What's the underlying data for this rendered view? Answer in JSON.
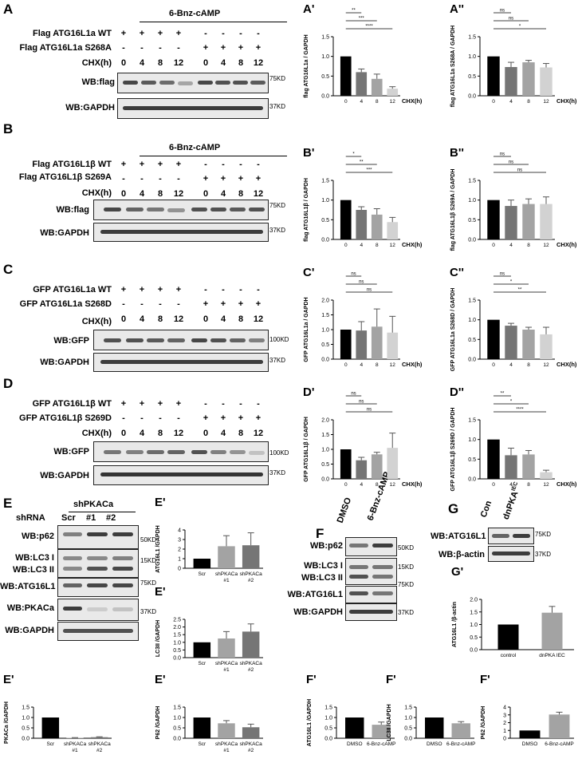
{
  "panels": {
    "A": {
      "label": "A",
      "header": "6-Bnz-cAMP",
      "row1": "Flag ATG16L1a WT",
      "row2": "Flag ATG16L1a S268A",
      "chx": "CHX(h)",
      "times": [
        "0",
        "4",
        "8",
        "12",
        "0",
        "4",
        "8",
        "12"
      ],
      "signs1": [
        "+",
        "+",
        "+",
        "+",
        "-",
        "-",
        "-",
        "-"
      ],
      "signs2": [
        "-",
        "-",
        "-",
        "-",
        "+",
        "+",
        "+",
        "+"
      ],
      "wb1": "WB:flag",
      "wb2": "WB:GAPDH",
      "mw1": "75KD",
      "mw2": "37KD"
    },
    "B": {
      "label": "B",
      "header": "6-Bnz-cAMP",
      "row1": "Flag ATG16L1β WT",
      "row2": "Flag ATG16L1β S269A",
      "chx": "CHX(h)",
      "times": [
        "0",
        "4",
        "8",
        "12",
        "0",
        "4",
        "8",
        "12"
      ],
      "signs1": [
        "+",
        "+",
        "+",
        "+",
        "-",
        "-",
        "-",
        "-"
      ],
      "signs2": [
        "-",
        "-",
        "-",
        "-",
        "+",
        "+",
        "+",
        "+"
      ],
      "wb1": "WB:flag",
      "wb2": "WB:GAPDH",
      "mw1": "75KD",
      "mw2": "37KD"
    },
    "C": {
      "label": "C",
      "row1": "GFP ATG16L1a WT",
      "row2": "GFP ATG16L1a S268D",
      "chx": "CHX(h)",
      "times": [
        "0",
        "4",
        "8",
        "12",
        "0",
        "4",
        "8",
        "12"
      ],
      "signs1": [
        "+",
        "+",
        "+",
        "+",
        "-",
        "-",
        "-",
        "-"
      ],
      "signs2": [
        "-",
        "-",
        "-",
        "-",
        "+",
        "+",
        "+",
        "+"
      ],
      "wb1": "WB:GFP",
      "wb2": "WB:GAPDH",
      "mw1": "100KD",
      "mw2": "37KD"
    },
    "D": {
      "label": "D",
      "row1": "GFP ATG16L1β WT",
      "row2": "GFP ATG16L1β S269D",
      "chx": "CHX(h)",
      "times": [
        "0",
        "4",
        "8",
        "12",
        "0",
        "4",
        "8",
        "12"
      ],
      "signs1": [
        "+",
        "+",
        "+",
        "+",
        "-",
        "-",
        "-",
        "-"
      ],
      "signs2": [
        "-",
        "-",
        "-",
        "-",
        "+",
        "+",
        "+",
        "+"
      ],
      "wb1": "WB:GFP",
      "wb2": "WB:GAPDH",
      "mw1": "100KD",
      "mw2": "37KD"
    },
    "E": {
      "label": "E",
      "shrna": "shRNA",
      "group": "shPKACa",
      "lanes": [
        "Scr",
        "#1",
        "#2"
      ],
      "wb": [
        "WB:p62",
        "WB:LC3 I",
        "WB:LC3 II",
        "WB:ATG16L1",
        "WB:PKACa",
        "WB:GAPDH"
      ],
      "mw": [
        "50KD",
        "15KD",
        "75KD",
        "37KD"
      ]
    },
    "F": {
      "label": "F",
      "lanes": [
        "DMSO",
        "6-Bnz-cAMP"
      ],
      "wb": [
        "WB:p62",
        "WB:LC3 I",
        "WB:LC3 II",
        "WB:ATG16L1",
        "WB:GAPDH"
      ],
      "mw": [
        "50KD",
        "15KD",
        "75KD",
        "37KD"
      ]
    },
    "G": {
      "label": "G",
      "lanes": [
        "Con",
        "dnPKA"
      ],
      "lane_sup": "IEC",
      "wb": [
        "WB:ATG16L1",
        "WB:β-actin"
      ],
      "mw": [
        "75KD",
        "37KD"
      ]
    }
  },
  "chart_data": [
    {
      "id": "A'",
      "type": "bar",
      "label": "A'",
      "ylabel": "flag ATG16L1a / GAPDH",
      "xlabel": "CHX(h)",
      "categories": [
        "0",
        "4",
        "8",
        "12"
      ],
      "values": [
        1.0,
        0.6,
        0.43,
        0.18
      ],
      "errors": [
        0,
        0.08,
        0.12,
        0.05
      ],
      "ylim": [
        0,
        1.5
      ],
      "yticks": [
        "0.0",
        "0.5",
        "1.0",
        "1.5"
      ],
      "sig": [
        {
          "label": "**",
          "to": 1
        },
        {
          "label": "***",
          "to": 2
        },
        {
          "label": "****",
          "to": 3
        }
      ],
      "colors": [
        "#000000",
        "#757575",
        "#a3a3a3",
        "#d2d2d2"
      ]
    },
    {
      "id": "A''",
      "type": "bar",
      "label": "A''",
      "ylabel": "flag ATG16L1a S268A / GAPDH",
      "xlabel": "CHX(h)",
      "categories": [
        "0",
        "4",
        "8",
        "12"
      ],
      "values": [
        1.0,
        0.73,
        0.85,
        0.72
      ],
      "errors": [
        0,
        0.12,
        0.05,
        0.1
      ],
      "ylim": [
        0,
        1.5
      ],
      "yticks": [
        "0.0",
        "0.5",
        "1.0",
        "1.5"
      ],
      "sig": [
        {
          "label": "ns",
          "to": 1
        },
        {
          "label": "ns",
          "to": 2
        },
        {
          "label": "*",
          "to": 3
        }
      ],
      "colors": [
        "#000000",
        "#757575",
        "#a3a3a3",
        "#d2d2d2"
      ]
    },
    {
      "id": "B'",
      "type": "bar",
      "label": "B'",
      "ylabel": "flag ATG16L1β / GAPDH",
      "xlabel": "CHX(h)",
      "categories": [
        "0",
        "4",
        "8",
        "12"
      ],
      "values": [
        1.0,
        0.75,
        0.63,
        0.44
      ],
      "errors": [
        0,
        0.08,
        0.15,
        0.12
      ],
      "ylim": [
        0,
        1.5
      ],
      "yticks": [
        "0.0",
        "0.5",
        "1.0",
        "1.5"
      ],
      "sig": [
        {
          "label": "*",
          "to": 1
        },
        {
          "label": "**",
          "to": 2
        },
        {
          "label": "***",
          "to": 3
        }
      ],
      "colors": [
        "#000000",
        "#757575",
        "#a3a3a3",
        "#d2d2d2"
      ]
    },
    {
      "id": "B''",
      "type": "bar",
      "label": "B''",
      "ylabel": "flag ATG16L1β S269A / GAPDH",
      "xlabel": "CHX(h)",
      "categories": [
        "0",
        "4",
        "8",
        "12"
      ],
      "values": [
        1.0,
        0.85,
        0.9,
        0.9
      ],
      "errors": [
        0,
        0.15,
        0.13,
        0.18
      ],
      "ylim": [
        0,
        1.5
      ],
      "yticks": [
        "0.0",
        "0.5",
        "1.0",
        "1.5"
      ],
      "sig": [
        {
          "label": "ns",
          "to": 1
        },
        {
          "label": "ns",
          "to": 2
        },
        {
          "label": "ns",
          "to": 3
        }
      ],
      "colors": [
        "#000000",
        "#757575",
        "#a3a3a3",
        "#d2d2d2"
      ]
    },
    {
      "id": "C'",
      "type": "bar",
      "label": "C'",
      "ylabel": "GFP ATG16L1a / GAPDH",
      "xlabel": "CHX(h)",
      "categories": [
        "0",
        "4",
        "8",
        "12"
      ],
      "values": [
        1.0,
        0.97,
        1.1,
        0.9
      ],
      "errors": [
        0,
        0.3,
        0.6,
        0.55
      ],
      "ylim": [
        0,
        2.0
      ],
      "yticks": [
        "0.0",
        "0.5",
        "1.0",
        "1.5",
        "2.0"
      ],
      "sig": [
        {
          "label": "ns",
          "to": 1
        },
        {
          "label": "ns",
          "to": 2
        },
        {
          "label": "ns",
          "to": 3
        }
      ],
      "colors": [
        "#000000",
        "#757575",
        "#a3a3a3",
        "#d2d2d2"
      ]
    },
    {
      "id": "C''",
      "type": "bar",
      "label": "C''",
      "ylabel": "GFP ATG16L1a S268D / GAPDH",
      "xlabel": "CHX(h)",
      "categories": [
        "0",
        "4",
        "8",
        "12"
      ],
      "values": [
        1.0,
        0.85,
        0.75,
        0.63
      ],
      "errors": [
        0,
        0.06,
        0.06,
        0.18
      ],
      "ylim": [
        0,
        1.5
      ],
      "yticks": [
        "0.0",
        "0.5",
        "1.0",
        "1.5"
      ],
      "sig": [
        {
          "label": "ns",
          "to": 1
        },
        {
          "label": "*",
          "to": 2
        },
        {
          "label": "**",
          "to": 3
        }
      ],
      "colors": [
        "#000000",
        "#757575",
        "#a3a3a3",
        "#d2d2d2"
      ]
    },
    {
      "id": "D'",
      "type": "bar",
      "label": "D'",
      "ylabel": "GFP ATG16L1β / GAPDH",
      "xlabel": "CHX(h)",
      "categories": [
        "0",
        "4",
        "8",
        "12"
      ],
      "values": [
        1.0,
        0.63,
        0.83,
        1.05
      ],
      "errors": [
        0,
        0.1,
        0.07,
        0.5
      ],
      "ylim": [
        0,
        2.0
      ],
      "yticks": [
        "0.0",
        "0.5",
        "1.0",
        "1.5",
        "2.0"
      ],
      "sig": [
        {
          "label": "ns",
          "to": 1
        },
        {
          "label": "ns",
          "to": 2
        },
        {
          "label": "ns",
          "to": 3
        }
      ],
      "colors": [
        "#000000",
        "#757575",
        "#a3a3a3",
        "#d2d2d2"
      ]
    },
    {
      "id": "D''",
      "type": "bar",
      "label": "D''",
      "ylabel": "GFP ATG16L1β S269D / GAPDH",
      "xlabel": "CHX(h)",
      "categories": [
        "0",
        "4",
        "8",
        "12"
      ],
      "values": [
        1.0,
        0.6,
        0.62,
        0.17
      ],
      "errors": [
        0,
        0.18,
        0.1,
        0.05
      ],
      "ylim": [
        0,
        1.5
      ],
      "yticks": [
        "0.0",
        "0.5",
        "1.0",
        "1.5"
      ],
      "sig": [
        {
          "label": "**",
          "to": 1
        },
        {
          "label": "*",
          "to": 2
        },
        {
          "label": "****",
          "to": 3
        }
      ],
      "colors": [
        "#000000",
        "#757575",
        "#a3a3a3",
        "#d2d2d2"
      ]
    },
    {
      "id": "E'1",
      "type": "bar",
      "label": "E'",
      "ylabel": "ATG16L1 /GAPDH",
      "categories": [
        "Scr",
        "shPKACa #1",
        "shPKACa #2"
      ],
      "values": [
        1.0,
        2.3,
        2.4
      ],
      "errors": [
        0,
        1.1,
        1.3
      ],
      "ylim": [
        0,
        4
      ],
      "yticks": [
        "0",
        "1",
        "2",
        "3",
        "4"
      ],
      "sig": [],
      "colors": [
        "#000000",
        "#a3a3a3",
        "#757575"
      ]
    },
    {
      "id": "E'2",
      "type": "bar",
      "label": "E'",
      "ylabel": "LC3II /GAPDH",
      "categories": [
        "Scr",
        "shPKACa #1",
        "shPKACa #2"
      ],
      "values": [
        1.0,
        1.25,
        1.7
      ],
      "errors": [
        0,
        0.45,
        0.5
      ],
      "ylim": [
        0,
        2.5
      ],
      "yticks": [
        "0.0",
        "0.5",
        "1.0",
        "1.5",
        "2.0",
        "2.5"
      ],
      "sig": [],
      "colors": [
        "#000000",
        "#a3a3a3",
        "#757575"
      ]
    },
    {
      "id": "E'3",
      "type": "bar",
      "label": "E'",
      "ylabel": "PKACa /GAPDH",
      "categories": [
        "Scr",
        "shPKACa #1",
        "shPKACa #2"
      ],
      "values": [
        1.0,
        0.02,
        0.05
      ],
      "errors": [
        0,
        0.01,
        0.02
      ],
      "ylim": [
        0,
        1.5
      ],
      "yticks": [
        "0.0",
        "0.5",
        "1.0",
        "1.5"
      ],
      "sig": [],
      "colors": [
        "#000000",
        "#a3a3a3",
        "#757575"
      ]
    },
    {
      "id": "E'4",
      "type": "bar",
      "label": "E'",
      "ylabel": "P62 /GAPDH",
      "categories": [
        "Scr",
        "shPKACa #1",
        "shPKACa #2"
      ],
      "values": [
        1.0,
        0.72,
        0.53
      ],
      "errors": [
        0,
        0.13,
        0.15
      ],
      "ylim": [
        0,
        1.5
      ],
      "yticks": [
        "0.0",
        "0.5",
        "1.0",
        "1.5"
      ],
      "sig": [],
      "colors": [
        "#000000",
        "#a3a3a3",
        "#757575"
      ]
    },
    {
      "id": "G'",
      "type": "bar",
      "label": "G'",
      "ylabel": "ATG16L1 /β-actin",
      "categories": [
        "control",
        "dnPKA IEC"
      ],
      "values": [
        1.0,
        1.47
      ],
      "errors": [
        0,
        0.25
      ],
      "ylim": [
        0,
        2.0
      ],
      "yticks": [
        "0.0",
        "0.5",
        "1.0",
        "1.5",
        "2.0"
      ],
      "sig": [],
      "colors": [
        "#000000",
        "#a3a3a3"
      ]
    },
    {
      "id": "F'1",
      "type": "bar",
      "label": "F'",
      "ylabel": "ATG16L1 /GAPDH",
      "categories": [
        "DMSO",
        "6-Bnz-cAMP"
      ],
      "values": [
        1.0,
        0.65
      ],
      "errors": [
        0,
        0.13
      ],
      "ylim": [
        0,
        1.5
      ],
      "yticks": [
        "0.0",
        "0.5",
        "1.0",
        "1.5"
      ],
      "sig": [],
      "colors": [
        "#000000",
        "#a3a3a3"
      ]
    },
    {
      "id": "F'2",
      "type": "bar",
      "label": "F'",
      "ylabel": "LC3II /GAPDH",
      "categories": [
        "DMSO",
        "6-Bnz-cAMP"
      ],
      "values": [
        1.0,
        0.72
      ],
      "errors": [
        0,
        0.08
      ],
      "ylim": [
        0,
        1.5
      ],
      "yticks": [
        "0.0",
        "0.5",
        "1.0",
        "1.5"
      ],
      "sig": [],
      "colors": [
        "#000000",
        "#a3a3a3"
      ]
    },
    {
      "id": "F'3",
      "type": "bar",
      "label": "F'",
      "ylabel": "P62 /GAPDH",
      "categories": [
        "DMSO",
        "6-Bnz-cAMP"
      ],
      "values": [
        1.0,
        3.05
      ],
      "errors": [
        0,
        0.3
      ],
      "ylim": [
        0,
        4
      ],
      "yticks": [
        "0",
        "1",
        "2",
        "3",
        "4"
      ],
      "sig": [],
      "colors": [
        "#000000",
        "#a3a3a3"
      ]
    }
  ]
}
